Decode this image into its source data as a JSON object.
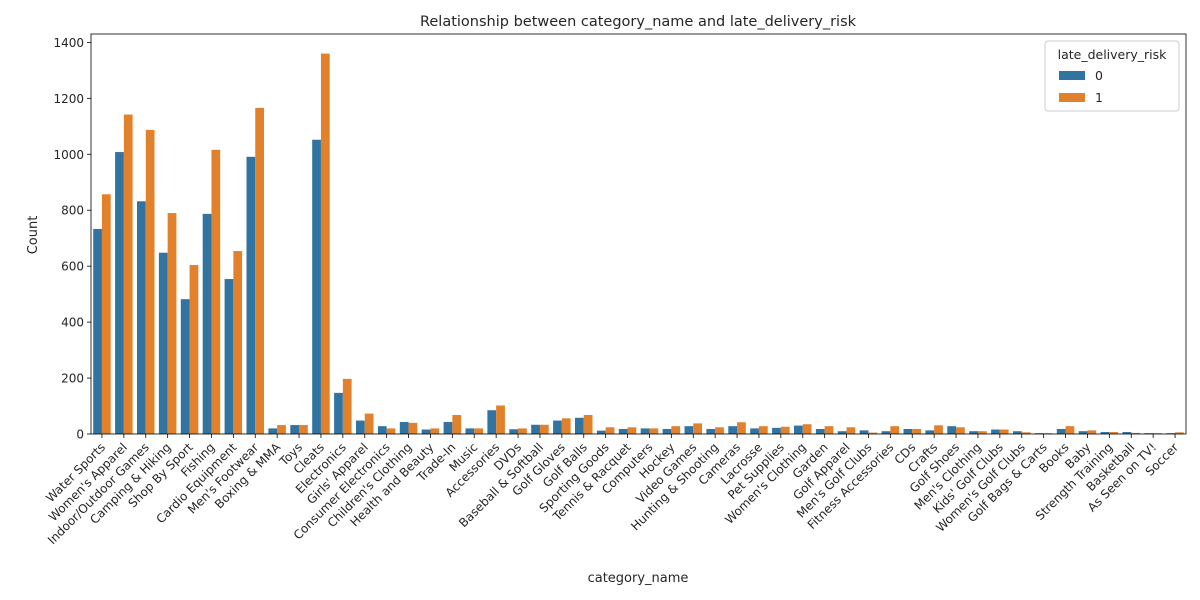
{
  "chart_data": {
    "type": "bar",
    "title": "Relationship between category_name and late_delivery_risk",
    "xlabel": "category_name",
    "ylabel": "Count",
    "ylim": [
      0,
      1430
    ],
    "yticks": [
      0,
      200,
      400,
      600,
      800,
      1000,
      1200,
      1400
    ],
    "grid": false,
    "legend": {
      "title": "late_delivery_risk",
      "placement": "top-right"
    },
    "categories": [
      "Water Sports",
      "Women's Apparel",
      "Indoor/Outdoor Games",
      "Camping & Hiking",
      "Shop By Sport",
      "Fishing",
      "Cardio Equipment",
      "Men's Footwear",
      "Boxing & MMA",
      "Toys",
      "Cleats",
      "Electronics",
      "Girls' Apparel",
      "Consumer Electronics",
      "Children's Clothing",
      "Health and Beauty",
      "Trade-In",
      "Music",
      "Accessories",
      "DVDs",
      "Baseball & Softball",
      "Golf Gloves",
      "Golf Balls",
      "Sporting Goods",
      "Tennis & Racquet",
      "Computers",
      "Hockey",
      "Video Games",
      "Hunting & Shooting",
      "Cameras",
      "Lacrosse",
      "Pet Supplies",
      "Women's Clothing",
      "Garden",
      "Golf Apparel",
      "Men's Golf Clubs",
      "Fitness Accessories",
      "CDs",
      "Crafts",
      "Golf Shoes",
      "Men's Clothing",
      "Kids' Golf Clubs",
      "Women's Golf Clubs",
      "Golf Bags & Carts",
      "Books",
      "Baby",
      "Strength Training",
      "Basketball",
      "As Seen on  TV!",
      "Soccer"
    ],
    "series": [
      {
        "name": "0",
        "color": "#3274a1",
        "values": [
          733,
          1008,
          832,
          648,
          482,
          787,
          554,
          991,
          20,
          32,
          1052,
          147,
          48,
          28,
          43,
          16,
          43,
          20,
          85,
          17,
          33,
          48,
          58,
          12,
          18,
          20,
          18,
          28,
          18,
          28,
          20,
          22,
          30,
          18,
          10,
          13,
          10,
          18,
          13,
          28,
          10,
          16,
          10,
          3,
          18,
          10,
          7,
          7,
          3,
          3
        ]
      },
      {
        "name": "1",
        "color": "#e1812c",
        "values": [
          857,
          1142,
          1087,
          790,
          604,
          1016,
          654,
          1166,
          32,
          32,
          1360,
          197,
          73,
          20,
          40,
          20,
          68,
          20,
          102,
          20,
          33,
          56,
          68,
          24,
          24,
          20,
          28,
          38,
          24,
          42,
          28,
          26,
          35,
          28,
          24,
          5,
          28,
          18,
          31,
          24,
          10,
          16,
          6,
          3,
          28,
          13,
          7,
          4,
          3,
          6
        ]
      }
    ]
  }
}
